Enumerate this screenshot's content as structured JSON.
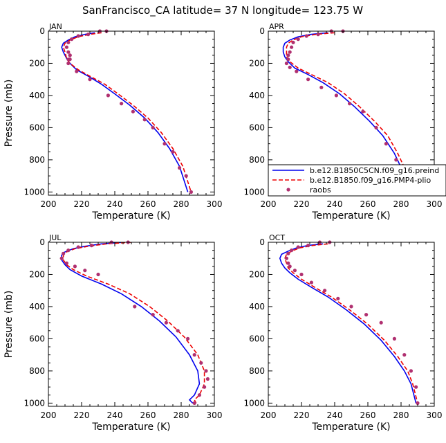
{
  "title": "SanFrancisco_CA  latitude= 37 N longitude= 123.75 W",
  "colors": {
    "model1": "#0000ee",
    "model2": "#ee0000",
    "raobs": "#b03070"
  },
  "legend": {
    "entries": [
      "b.e12.B1850C5CN.f09_g16.preind",
      "b.e12.B1850.f09_g16.PMP4-plio",
      "raobs"
    ]
  },
  "chart_data": [
    {
      "type": "line",
      "month": "JAN",
      "xlabel": "Temperature (K)",
      "ylabel": "Pressure (mb)",
      "xlim": [
        200,
        300
      ],
      "ylim": [
        1020,
        0
      ],
      "grid": false,
      "xticks": [
        200,
        220,
        240,
        260,
        280,
        300
      ],
      "yticks": [
        0,
        200,
        400,
        600,
        800,
        1000
      ],
      "series": [
        {
          "name": "b.e12.B1850C5CN.f09_g16.preind",
          "x": [
            228,
            222,
            216,
            212,
            209,
            208,
            209,
            211,
            213,
            217,
            224,
            232,
            240,
            249,
            258,
            266,
            273,
            279,
            284
          ],
          "y": [
            10,
            20,
            35,
            55,
            75,
            100,
            130,
            170,
            200,
            240,
            280,
            330,
            390,
            460,
            540,
            630,
            730,
            840,
            1000
          ]
        },
        {
          "name": "b.e12.B1850.f09_g16.PMP4-plio",
          "x": [
            232,
            225,
            218,
            213,
            210,
            209,
            210,
            211,
            213,
            218,
            225,
            234,
            242,
            251,
            260,
            268,
            275,
            281,
            286
          ],
          "y": [
            10,
            20,
            35,
            55,
            75,
            100,
            130,
            170,
            200,
            240,
            280,
            330,
            390,
            460,
            540,
            630,
            730,
            840,
            1000
          ]
        },
        {
          "name": "raobs",
          "x": [
            235,
            231,
            224,
            218,
            214,
            212,
            211,
            212,
            213,
            213,
            212,
            212,
            213,
            217,
            225,
            236,
            244,
            251,
            258,
            263,
            270,
            275,
            279,
            283,
            286
          ],
          "y": [
            0,
            0,
            20,
            30,
            50,
            70,
            100,
            130,
            150,
            175,
            200,
            175,
            150,
            250,
            300,
            400,
            450,
            500,
            550,
            600,
            700,
            750,
            850,
            900,
            1000
          ]
        }
      ]
    },
    {
      "type": "line",
      "month": "APR",
      "xlabel": "Temperature (K)",
      "ylabel": "",
      "xlim": [
        200,
        300
      ],
      "ylim": [
        1020,
        0
      ],
      "grid": false,
      "xticks": [
        200,
        220,
        240,
        260,
        280,
        300
      ],
      "yticks": [
        0,
        200,
        400,
        600,
        800,
        1000
      ],
      "series": [
        {
          "name": "b.e12.B1850C5CN.f09_g16.preind",
          "x": [
            236,
            226,
            218,
            213,
            210,
            209,
            209,
            210,
            212,
            216,
            224,
            233,
            243,
            252,
            261,
            269,
            276,
            281,
            285
          ],
          "y": [
            10,
            20,
            35,
            55,
            75,
            100,
            130,
            160,
            190,
            230,
            270,
            320,
            390,
            470,
            560,
            650,
            760,
            870,
            1000
          ]
        },
        {
          "name": "b.e12.B1850.f09_g16.PMP4-plio",
          "x": [
            240,
            229,
            220,
            215,
            212,
            211,
            211,
            211,
            213,
            218,
            226,
            236,
            246,
            255,
            264,
            272,
            278,
            283,
            287
          ],
          "y": [
            10,
            20,
            35,
            55,
            75,
            100,
            130,
            160,
            190,
            230,
            270,
            320,
            390,
            470,
            560,
            650,
            760,
            870,
            1000
          ]
        },
        {
          "name": "raobs",
          "x": [
            245,
            238,
            230,
            223,
            218,
            215,
            214,
            213,
            212,
            212,
            211,
            213,
            217,
            224,
            232,
            241,
            249,
            257,
            265,
            271,
            277,
            281,
            284,
            286
          ],
          "y": [
            0,
            0,
            20,
            30,
            50,
            70,
            100,
            130,
            150,
            175,
            200,
            225,
            250,
            300,
            350,
            400,
            450,
            500,
            600,
            700,
            800,
            850,
            900,
            1000
          ]
        }
      ]
    },
    {
      "type": "line",
      "month": "JUL",
      "xlabel": "Temperature (K)",
      "ylabel": "Pressure (mb)",
      "xlim": [
        200,
        300
      ],
      "ylim": [
        1020,
        0
      ],
      "grid": false,
      "xticks": [
        200,
        220,
        240,
        260,
        280,
        300
      ],
      "yticks": [
        0,
        200,
        400,
        600,
        800,
        1000
      ],
      "series": [
        {
          "name": "b.e12.B1850C5CN.f09_g16.preind",
          "x": [
            246,
            232,
            222,
            215,
            210,
            208,
            208,
            210,
            213,
            220,
            232,
            244,
            256,
            267,
            277,
            285,
            290,
            291,
            288,
            285,
            287
          ],
          "y": [
            0,
            10,
            25,
            40,
            60,
            80,
            110,
            140,
            170,
            210,
            260,
            320,
            400,
            490,
            590,
            700,
            800,
            880,
            950,
            980,
            1000
          ]
        },
        {
          "name": "b.e12.B1850.f09_g16.PMP4-plio",
          "x": [
            250,
            235,
            224,
            216,
            211,
            209,
            209,
            211,
            215,
            223,
            236,
            249,
            261,
            272,
            282,
            290,
            294,
            294,
            291,
            288,
            289
          ],
          "y": [
            0,
            10,
            25,
            40,
            60,
            80,
            110,
            140,
            170,
            210,
            260,
            320,
            400,
            490,
            590,
            700,
            800,
            880,
            950,
            980,
            1000
          ]
        },
        {
          "name": "raobs",
          "x": [
            248,
            238,
            226,
            218,
            212,
            209,
            208,
            211,
            216,
            222,
            230,
            252,
            263,
            271,
            278,
            284,
            288,
            292,
            295,
            296,
            294,
            291,
            288
          ],
          "y": [
            0,
            0,
            20,
            30,
            50,
            70,
            100,
            130,
            150,
            175,
            200,
            400,
            450,
            500,
            550,
            600,
            700,
            750,
            800,
            850,
            900,
            950,
            1000
          ]
        }
      ]
    },
    {
      "type": "line",
      "month": "OCT",
      "xlabel": "Temperature (K)",
      "ylabel": "",
      "xlim": [
        200,
        300
      ],
      "ylim": [
        1020,
        0
      ],
      "grid": false,
      "xticks": [
        200,
        220,
        240,
        260,
        280,
        300
      ],
      "yticks": [
        0,
        200,
        400,
        600,
        800,
        1000
      ],
      "series": [
        {
          "name": "b.e12.B1850C5CN.f09_g16.preind",
          "x": [
            233,
            224,
            217,
            212,
            208,
            207,
            208,
            210,
            213,
            218,
            226,
            236,
            247,
            258,
            268,
            276,
            282,
            286,
            288,
            289
          ],
          "y": [
            10,
            20,
            35,
            55,
            75,
            100,
            130,
            160,
            190,
            230,
            280,
            340,
            420,
            510,
            610,
            710,
            800,
            880,
            960,
            1000
          ]
        },
        {
          "name": "b.e12.B1850.f09_g16.PMP4-plio",
          "x": [
            236,
            227,
            219,
            214,
            211,
            210,
            211,
            212,
            215,
            220,
            228,
            238,
            249,
            260,
            270,
            278,
            284,
            287,
            289,
            290
          ],
          "y": [
            10,
            20,
            35,
            55,
            75,
            100,
            130,
            160,
            190,
            230,
            280,
            340,
            420,
            510,
            610,
            710,
            800,
            880,
            960,
            1000
          ]
        },
        {
          "name": "raobs",
          "x": [
            237,
            231,
            224,
            218,
            214,
            212,
            211,
            212,
            213,
            216,
            220,
            226,
            234,
            242,
            250,
            259,
            268,
            276,
            282,
            286,
            289,
            290
          ],
          "y": [
            0,
            0,
            20,
            30,
            50,
            70,
            100,
            130,
            150,
            175,
            200,
            250,
            300,
            350,
            400,
            450,
            500,
            600,
            700,
            800,
            900,
            1000
          ]
        }
      ]
    }
  ]
}
